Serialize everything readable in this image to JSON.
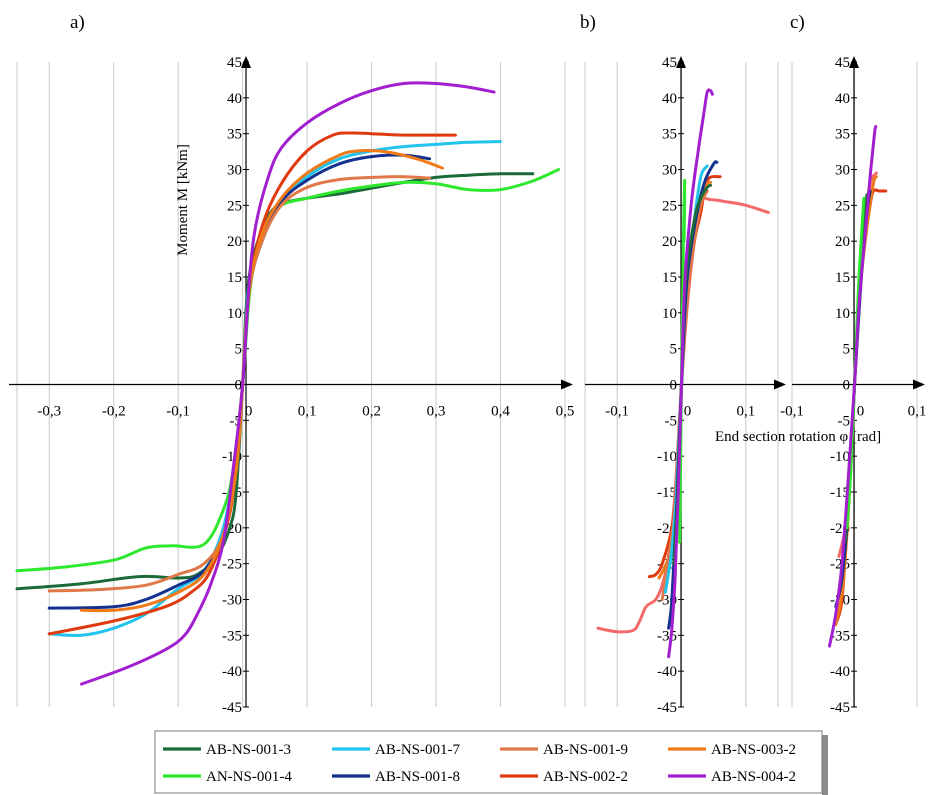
{
  "chart_data": [
    {
      "type": "line",
      "panel_label": "a)",
      "ylabel": "Moment M [kNm]",
      "xlabel": "",
      "xlim": [
        -0.35,
        0.5
      ],
      "ylim": [
        -45,
        45
      ],
      "x_ticks": [
        -0.3,
        -0.2,
        -0.1,
        0,
        0.1,
        0.2,
        0.3,
        0.4,
        0.5
      ],
      "x_tick_labels": [
        "-0,3",
        "-0,2",
        "-0,1",
        "0",
        "0,1",
        "0,2",
        "0,3",
        "0,4",
        "0,5"
      ],
      "y_ticks": [
        -45,
        -40,
        -35,
        -30,
        -25,
        -20,
        -15,
        -10,
        -5,
        0,
        5,
        10,
        15,
        20,
        25,
        30,
        35,
        40,
        45
      ],
      "y_tick_labels": [
        "-45",
        "-40",
        "-35",
        "-30",
        "-25",
        "-20",
        "-15",
        "-10",
        "-5",
        "0",
        "5",
        "10",
        "15",
        "20",
        "25",
        "30",
        "35",
        "40",
        "45"
      ],
      "grid": true,
      "series": [
        {
          "name": "AB-NS-001-3",
          "color": "#1b6b3a",
          "x": [
            -0.35,
            -0.25,
            -0.16,
            -0.1,
            -0.07,
            -0.04,
            -0.02,
            -0.01,
            0,
            0.005,
            0.01,
            0.02,
            0.04,
            0.06,
            0.1,
            0.15,
            0.2,
            0.25,
            0.3,
            0.35,
            0.4,
            0.45
          ],
          "y": [
            -28.5,
            -27.8,
            -26.8,
            -27,
            -26.5,
            -24,
            -20,
            -15,
            0,
            10,
            15,
            19,
            23.5,
            25.2,
            26,
            26.6,
            27.4,
            28.2,
            28.9,
            29.2,
            29.4,
            29.4
          ]
        },
        {
          "name": "AN-NS-001-4",
          "color": "#2ee82e",
          "x": [
            -0.35,
            -0.28,
            -0.2,
            -0.15,
            -0.11,
            -0.06,
            -0.03,
            -0.015,
            0,
            0.01,
            0.02,
            0.04,
            0.06,
            0.1,
            0.15,
            0.2,
            0.25,
            0.3,
            0.35,
            0.4,
            0.45,
            0.49
          ],
          "y": [
            -26,
            -25.5,
            -24.5,
            -22.8,
            -22.5,
            -22.3,
            -17.5,
            -12,
            0,
            12,
            17.5,
            22.5,
            25,
            26,
            27,
            27.7,
            28.2,
            28,
            27.2,
            27.2,
            28.4,
            30
          ]
        },
        {
          "name": "AB-NS-001-7",
          "color": "#22c4ee",
          "x": [
            -0.3,
            -0.25,
            -0.2,
            -0.15,
            -0.1,
            -0.06,
            -0.03,
            -0.01,
            0,
            0.01,
            0.03,
            0.06,
            0.1,
            0.15,
            0.2,
            0.25,
            0.3,
            0.35,
            0.4
          ],
          "y": [
            -34.8,
            -35,
            -34,
            -32,
            -28.5,
            -26,
            -20,
            -10,
            0,
            14,
            20,
            25.5,
            29,
            31.5,
            32.6,
            33.2,
            33.5,
            33.8,
            33.9
          ]
        },
        {
          "name": "AB-NS-001-8",
          "color": "#13318e",
          "x": [
            -0.3,
            -0.2,
            -0.15,
            -0.1,
            -0.06,
            -0.03,
            -0.01,
            0,
            0.01,
            0.03,
            0.06,
            0.1,
            0.15,
            0.2,
            0.25,
            0.29
          ],
          "y": [
            -31.2,
            -31,
            -30,
            -28,
            -26,
            -21,
            -12,
            0,
            13,
            20,
            25.5,
            28.5,
            30.8,
            31.8,
            32,
            31.5
          ]
        },
        {
          "name": "AB-NS-001-9",
          "color": "#e07848",
          "x": [
            -0.3,
            -0.22,
            -0.15,
            -0.1,
            -0.06,
            -0.03,
            -0.01,
            0,
            0.01,
            0.03,
            0.06,
            0.1,
            0.15,
            0.2,
            0.25,
            0.29
          ],
          "y": [
            -28.8,
            -28.6,
            -28,
            -26.5,
            -25,
            -21,
            -12,
            0,
            13,
            20,
            25,
            27.5,
            28.6,
            28.9,
            29,
            28.8
          ]
        },
        {
          "name": "AB-NS-002-2",
          "color": "#e03a10",
          "x": [
            -0.3,
            -0.2,
            -0.12,
            -0.08,
            -0.05,
            -0.02,
            -0.01,
            0,
            0.01,
            0.03,
            0.06,
            0.1,
            0.14,
            0.17,
            0.2,
            0.25,
            0.3,
            0.33
          ],
          "y": [
            -34.8,
            -33,
            -31,
            -29,
            -26,
            -18,
            -10,
            0,
            13,
            22,
            28,
            32.6,
            34.8,
            35.1,
            35,
            34.8,
            34.8,
            34.8
          ]
        },
        {
          "name": "AB-NS-003-2",
          "color": "#f07a18",
          "x": [
            -0.25,
            -0.2,
            -0.15,
            -0.1,
            -0.06,
            -0.03,
            -0.01,
            0,
            0.01,
            0.03,
            0.06,
            0.1,
            0.15,
            0.18,
            0.22,
            0.27,
            0.31
          ],
          "y": [
            -31.5,
            -31.5,
            -30.8,
            -29,
            -26.5,
            -21,
            -12,
            0,
            13,
            21,
            26,
            29.5,
            32,
            32.6,
            32.5,
            31.5,
            30.2
          ]
        },
        {
          "name": "AB-NS-004-2",
          "color": "#a21fd0",
          "x": [
            -0.25,
            -0.18,
            -0.12,
            -0.09,
            -0.07,
            -0.05,
            -0.03,
            -0.015,
            0,
            0.01,
            0.02,
            0.04,
            0.06,
            0.1,
            0.15,
            0.2,
            0.25,
            0.3,
            0.35,
            0.39
          ],
          "y": [
            -41.8,
            -39.5,
            -37,
            -35,
            -32,
            -28,
            -22,
            -12,
            0,
            14,
            22,
            29,
            33,
            36.5,
            39.2,
            41,
            42,
            42,
            41.5,
            40.8
          ]
        }
      ]
    },
    {
      "type": "line",
      "panel_label": "b)",
      "xlim": [
        -0.15,
        0.15
      ],
      "ylim": [
        -45,
        45
      ],
      "x_ticks": [
        -0.1,
        0,
        0.1
      ],
      "x_tick_labels": [
        "-0,1",
        "0",
        "0,1"
      ],
      "y_tick_labels": [
        "-45",
        "-40",
        "-35",
        "-30",
        "-25",
        "-20",
        "-15",
        "-10",
        "-5",
        "0",
        "5",
        "10",
        "15",
        "20",
        "25",
        "30",
        "35",
        "40",
        "45"
      ],
      "grid": true,
      "series": [
        {
          "color": "#f46a6a",
          "x": [
            -0.13,
            -0.1,
            -0.075,
            -0.065,
            -0.055,
            -0.04,
            -0.03,
            -0.02,
            -0.01,
            0,
            0.01,
            0.02,
            0.03,
            0.045,
            0.07,
            0.1,
            0.135
          ],
          "y": [
            -34,
            -34.5,
            -34.3,
            -33,
            -31,
            -30,
            -28,
            -24,
            -15,
            0,
            12,
            20,
            25.5,
            25.8,
            25.5,
            25,
            24
          ]
        },
        {
          "color": "#e03a10",
          "x": [
            -0.05,
            -0.04,
            -0.03,
            -0.015,
            -0.005,
            0,
            0.01,
            0.02,
            0.03,
            0.04,
            0.06
          ],
          "y": [
            -26.8,
            -26.5,
            -25,
            -20,
            -12,
            0,
            13,
            20,
            24,
            28.5,
            29
          ]
        },
        {
          "color": "#f07a18",
          "x": [
            -0.035,
            -0.02,
            -0.01,
            0,
            0.01,
            0.02,
            0.03,
            0.04,
            0.045
          ],
          "y": [
            -27,
            -24,
            -17,
            0,
            14,
            21,
            25.5,
            28,
            28.2
          ]
        },
        {
          "color": "#e07848",
          "x": [
            -0.03,
            -0.02,
            -0.01,
            0,
            0.01,
            0.02,
            0.03,
            0.04
          ],
          "y": [
            -30,
            -24,
            -17,
            0,
            13,
            20,
            25,
            27
          ]
        },
        {
          "color": "#22c4ee",
          "x": [
            -0.025,
            -0.015,
            -0.008,
            0,
            0.008,
            0.02,
            0.03,
            0.04
          ],
          "y": [
            -29,
            -23,
            -15,
            0,
            14,
            23,
            29,
            30.5
          ]
        },
        {
          "color": "#13318e",
          "x": [
            -0.02,
            -0.015,
            -0.008,
            0,
            0.008,
            0.02,
            0.035,
            0.05,
            0.055
          ],
          "y": [
            -34,
            -30,
            -18,
            0,
            14,
            22,
            28,
            30.8,
            31
          ]
        },
        {
          "color": "#1b6b3a",
          "x": [
            -0.012,
            -0.006,
            0,
            0.006,
            0.02,
            0.03,
            0.04,
            0.045
          ],
          "y": [
            -25,
            -15,
            0,
            14,
            23,
            26,
            27.5,
            27.8
          ]
        },
        {
          "color": "#2ee82e",
          "x": [
            -0.003,
            0,
            0.003,
            0.005,
            0.004
          ],
          "y": [
            -22,
            0,
            20,
            28.5,
            20
          ]
        },
        {
          "color": "#a21fd0",
          "x": [
            -0.02,
            -0.015,
            -0.01,
            -0.005,
            0,
            0.005,
            0.015,
            0.025,
            0.035,
            0.04,
            0.045,
            0.048
          ],
          "y": [
            -38,
            -34,
            -27,
            -15,
            0,
            14,
            25,
            32,
            38,
            40.8,
            41,
            40.5
          ]
        }
      ]
    },
    {
      "type": "line",
      "panel_label": "c)",
      "xlabel": "End section rotation φ [rad]",
      "xlim": [
        -0.1,
        0.1
      ],
      "ylim": [
        -45,
        45
      ],
      "x_ticks": [
        -0.1,
        0,
        0.1
      ],
      "x_tick_labels": [
        "-0,1",
        "0",
        "0,1"
      ],
      "y_tick_labels": [
        "-45",
        "-40",
        "-35",
        "-30",
        "-25",
        "-20",
        "-15",
        "-10",
        "-5",
        "0",
        "5",
        "10",
        "15",
        "20",
        "25",
        "30",
        "35",
        "40",
        "45"
      ],
      "grid": true,
      "series": [
        {
          "color": "#f46a6a",
          "x": [
            -0.025,
            -0.015,
            -0.008,
            0,
            0.008,
            0.015,
            0.025,
            0.035
          ],
          "y": [
            -24,
            -20,
            -12,
            0,
            13,
            21,
            28,
            29.5
          ]
        },
        {
          "color": "#e03a10",
          "x": [
            -0.028,
            -0.02,
            -0.012,
            -0.005,
            0,
            0.006,
            0.015,
            0.025,
            0.03,
            0.04,
            0.05
          ],
          "y": [
            -33,
            -30,
            -20,
            -10,
            0,
            10,
            19,
            25,
            27,
            27,
            27
          ]
        },
        {
          "color": "#f07a18",
          "x": [
            -0.03,
            -0.02,
            -0.01,
            0,
            0.01,
            0.02,
            0.03,
            0.035
          ],
          "y": [
            -33.5,
            -29,
            -18,
            0,
            14,
            22,
            28,
            29
          ]
        },
        {
          "color": "#13318e",
          "x": [
            -0.03,
            -0.02,
            -0.01,
            0,
            0.01,
            0.02,
            0.025
          ],
          "y": [
            -31,
            -27,
            -17,
            0,
            14,
            24,
            27
          ]
        },
        {
          "color": "#1b6b3a",
          "x": [
            -0.015,
            -0.008,
            0,
            0.008,
            0.015,
            0.02
          ],
          "y": [
            -22,
            -14,
            0,
            14,
            23,
            26.5
          ]
        },
        {
          "color": "#2ee82e",
          "x": [
            -0.012,
            -0.006,
            0,
            0.006,
            0.012,
            0.015
          ],
          "y": [
            -20,
            -12,
            0,
            13,
            22,
            26
          ]
        },
        {
          "color": "#a21fd0",
          "x": [
            -0.04,
            -0.03,
            -0.02,
            -0.01,
            0,
            0.008,
            0.018,
            0.025,
            0.032,
            0.034
          ],
          "y": [
            -36.5,
            -32,
            -25,
            -13,
            0,
            12,
            22,
            29,
            35,
            36
          ]
        }
      ]
    }
  ],
  "legend": {
    "items": [
      {
        "label": "AB-NS-001-3",
        "color": "#1b6b3a"
      },
      {
        "label": "AB-NS-001-7",
        "color": "#22c4ee"
      },
      {
        "label": "AB-NS-001-9",
        "color": "#e07848"
      },
      {
        "label": "AB-NS-003-2",
        "color": "#f07a18"
      },
      {
        "label": "AN-NS-001-4",
        "color": "#2ee82e"
      },
      {
        "label": "AB-NS-001-8",
        "color": "#13318e"
      },
      {
        "label": "AB-NS-002-2",
        "color": "#e03a10"
      },
      {
        "label": "AB-NS-004-2",
        "color": "#a21fd0"
      }
    ]
  }
}
